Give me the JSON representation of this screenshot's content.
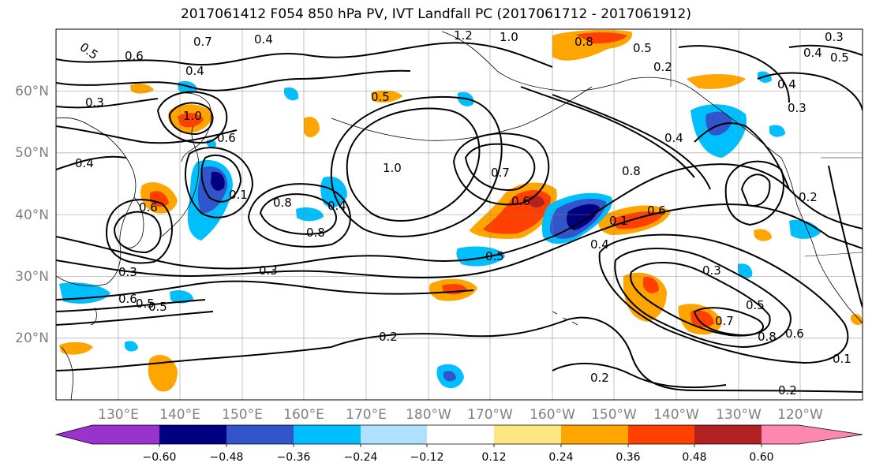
{
  "title": "2017061412 F054 850 hPa PV, IVT Landfall PC (2017061712 - 2017061912)",
  "lat_labels": [
    "20°N",
    "30°N",
    "40°N",
    "50°N",
    "60°N"
  ],
  "lon_labels": [
    "130°E",
    "140°E",
    "150°E",
    "160°E",
    "170°E",
    "180°W",
    "170°W",
    "160°W",
    "150°W",
    "140°W",
    "130°W",
    "120°W"
  ],
  "colorbar": {
    "ticks": [
      "−0.60",
      "−0.48",
      "−0.36",
      "−0.24",
      "−0.12",
      "0.12",
      "0.24",
      "0.36",
      "0.48",
      "0.60"
    ],
    "colors": [
      "#9933cc",
      "#000080",
      "#3355cc",
      "#00bfff",
      "#b0e0ff",
      "#ffffff",
      "#ffe680",
      "#ffa500",
      "#ff4000",
      "#b22222",
      "#ff88b0"
    ]
  },
  "contour_labels": [
    "0.5",
    "0.6",
    "0.7",
    "0.4",
    "1.2",
    "1.0",
    "0.8",
    "0.5",
    "0.2",
    "0.3",
    "0.4",
    "0.3",
    "0.4",
    "0.3",
    "0.4",
    "0.5",
    "1.0",
    "0.6",
    "0.4",
    "0.4",
    "0.1",
    "0.7",
    "1.0",
    "0.8",
    "0.4",
    "0.8",
    "0.2",
    "0.8",
    "0.5",
    "0.6",
    "0.6",
    "0.1",
    "0.6",
    "0.5",
    "0.4",
    "0.3",
    "0.3",
    "0.5",
    "0.3",
    "0.5",
    "0.7",
    "0.8",
    "0.6",
    "0.2",
    "0.1",
    "0.2",
    "0.2",
    "0.6",
    "0.5"
  ]
}
